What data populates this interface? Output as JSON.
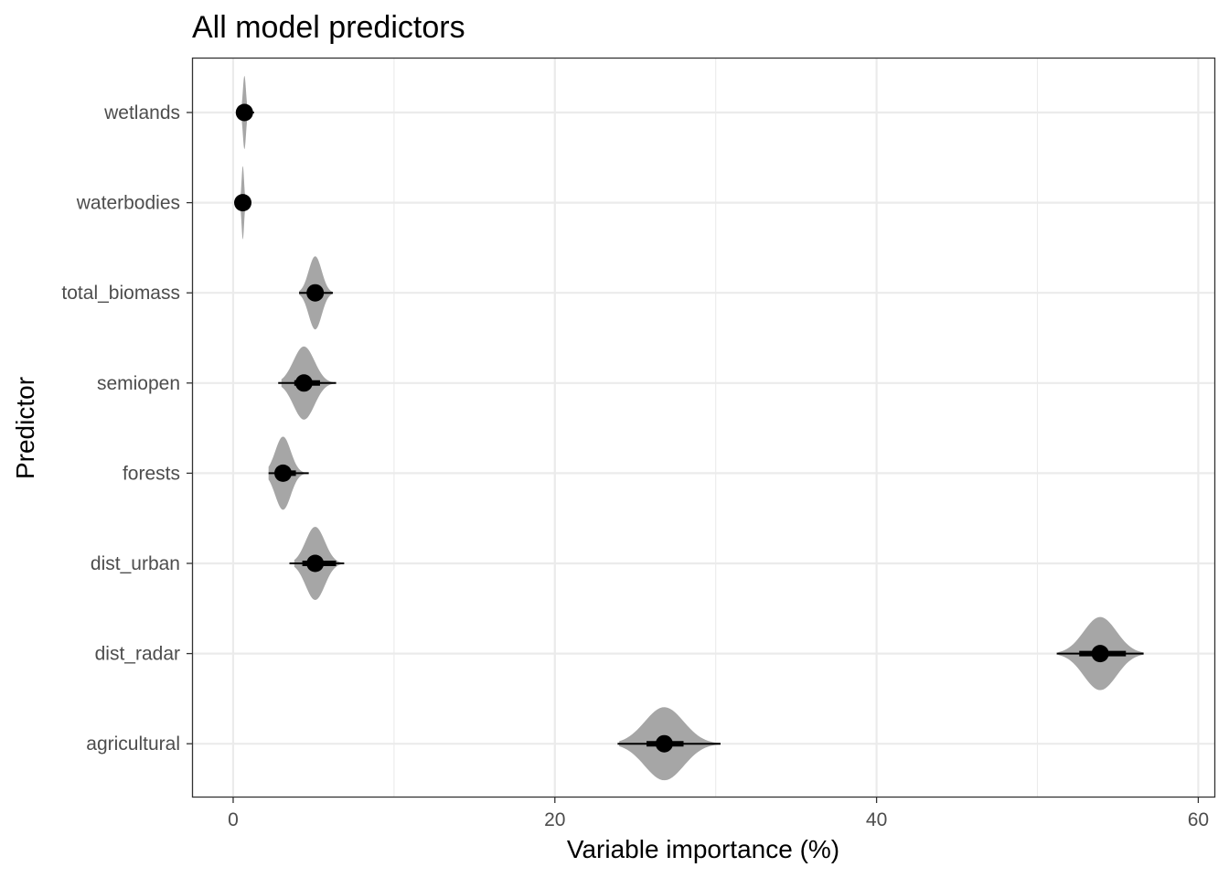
{
  "chart_data": {
    "type": "scatter",
    "subtype": "point-interval with density",
    "title": "All model predictors",
    "xlabel": "Variable importance (%)",
    "ylabel": "Predictor",
    "xlim": [
      -2.5,
      61
    ],
    "x_ticks": [
      0,
      20,
      40,
      60
    ],
    "x_minor_ticks": [
      10,
      30,
      50
    ],
    "categories": [
      "wetlands",
      "waterbodies",
      "total_biomass",
      "semiopen",
      "forests",
      "dist_urban",
      "dist_radar",
      "agricultural"
    ],
    "grid": true,
    "colors": {
      "point": "#000000",
      "density": "#a6a6a6",
      "grid": "#ebebeb",
      "border": "#333333"
    },
    "series": [
      {
        "category": "wetlands",
        "point": 0.7,
        "density_range": [
          0.45,
          0.95
        ],
        "interval_66": [
          0.55,
          0.85
        ],
        "interval_95": [
          0.45,
          1.3
        ]
      },
      {
        "category": "waterbodies",
        "point": 0.6,
        "density_range": [
          0.4,
          0.8
        ],
        "interval_66": [
          0.5,
          0.7
        ],
        "interval_95": [
          0.35,
          0.85
        ]
      },
      {
        "category": "total_biomass",
        "point": 5.1,
        "density_range": [
          4.1,
          6.2
        ],
        "interval_66": [
          4.6,
          5.6
        ],
        "interval_95": [
          4.1,
          6.2
        ]
      },
      {
        "category": "semiopen",
        "point": 4.4,
        "density_range": [
          3.0,
          6.4
        ],
        "interval_66": [
          3.8,
          5.4
        ],
        "interval_95": [
          2.8,
          6.4
        ]
      },
      {
        "category": "forests",
        "point": 3.1,
        "density_range": [
          2.2,
          4.7
        ],
        "interval_66": [
          2.7,
          3.9
        ],
        "interval_95": [
          2.2,
          4.7
        ]
      },
      {
        "category": "dist_urban",
        "point": 5.1,
        "density_range": [
          3.8,
          6.9
        ],
        "interval_66": [
          4.3,
          6.4
        ],
        "interval_95": [
          3.5,
          6.9
        ]
      },
      {
        "category": "dist_radar",
        "point": 53.9,
        "density_range": [
          51.3,
          56.6
        ],
        "interval_66": [
          52.6,
          55.5
        ],
        "interval_95": [
          51.2,
          56.6
        ]
      },
      {
        "category": "agricultural",
        "point": 26.8,
        "density_range": [
          24.0,
          30.3
        ],
        "interval_66": [
          25.7,
          28.0
        ],
        "interval_95": [
          23.9,
          30.3
        ]
      }
    ]
  }
}
